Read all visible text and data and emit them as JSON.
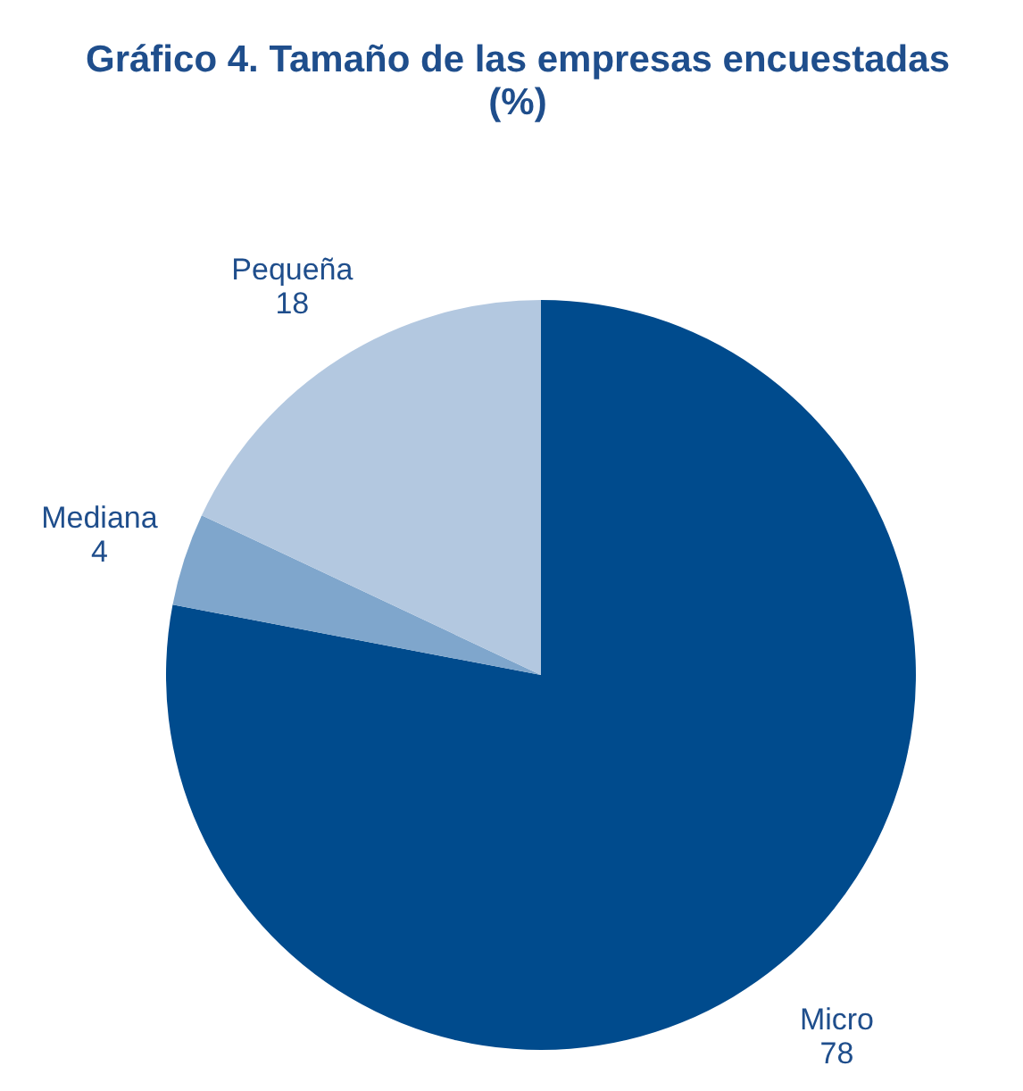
{
  "chart_data": {
    "type": "pie",
    "title": "Gráfico 4. Tamaño de las empresas encuestadas (%)",
    "categories": [
      "Micro",
      "Mediana",
      "Pequeña"
    ],
    "values": [
      78,
      4,
      18
    ],
    "colors": [
      "#004b8d",
      "#7fa6cc",
      "#b3c8e0"
    ],
    "data_labels": true,
    "legend": false
  }
}
